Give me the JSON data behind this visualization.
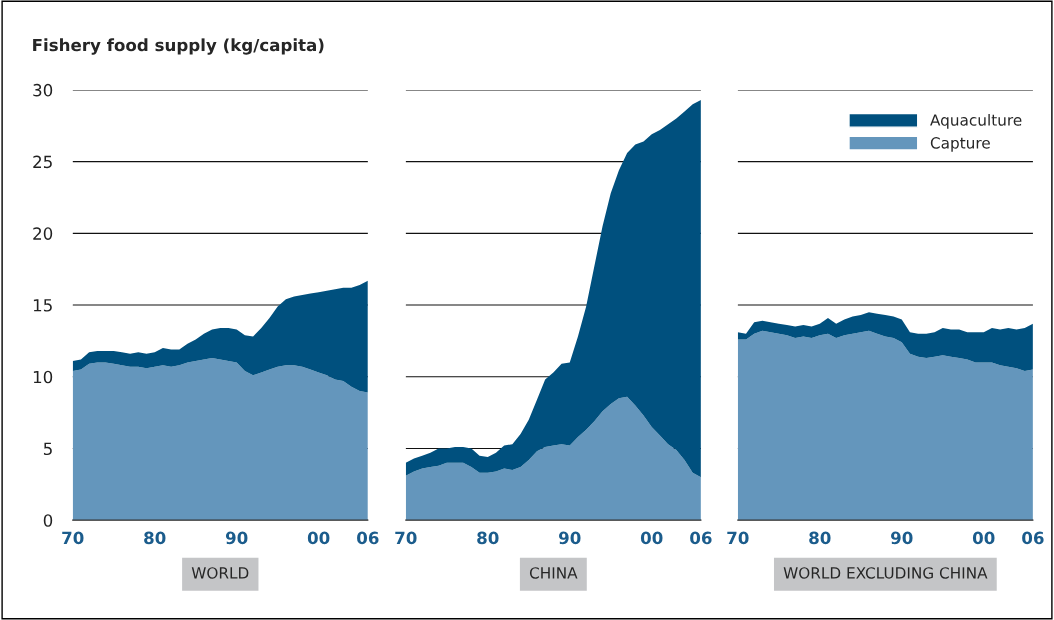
{
  "chart_data": [
    {
      "type": "area",
      "stacked": true,
      "ylabel": "Fishery food supply (kg/capita)",
      "xlabel": "WORLD",
      "x": [
        1970,
        1971,
        1972,
        1973,
        1974,
        1975,
        1976,
        1977,
        1978,
        1979,
        1980,
        1981,
        1982,
        1983,
        1984,
        1985,
        1986,
        1987,
        1988,
        1989,
        1990,
        1991,
        1992,
        1993,
        1994,
        1995,
        1996,
        1997,
        1998,
        1999,
        2000,
        2001,
        2002,
        2003,
        2004,
        2005,
        2006
      ],
      "series": [
        {
          "color": "#6496bc",
          "values": [
            10.4,
            10.5,
            10.9,
            11.0,
            11.0,
            10.9,
            10.8,
            10.7,
            10.7,
            10.6,
            10.7,
            10.8,
            10.7,
            10.8,
            11.0,
            11.1,
            11.2,
            11.3,
            11.2,
            11.1,
            11.0,
            10.4,
            10.1,
            10.3,
            10.5,
            10.7,
            10.8,
            10.8,
            10.7,
            10.5,
            10.3,
            10.1,
            9.8,
            9.7,
            9.3,
            9.0,
            8.9
          ]
        },
        {
          "color": "#00507e",
          "values": [
            0.7,
            0.7,
            0.8,
            0.8,
            0.8,
            0.9,
            0.9,
            0.9,
            1.0,
            1.0,
            1.0,
            1.2,
            1.2,
            1.1,
            1.3,
            1.5,
            1.8,
            2.0,
            2.2,
            2.3,
            2.3,
            2.5,
            2.7,
            3.1,
            3.6,
            4.2,
            4.6,
            4.8,
            5.0,
            5.3,
            5.6,
            5.9,
            6.3,
            6.5,
            6.9,
            7.4,
            7.8
          ]
        }
      ],
      "xlim": [
        1970,
        2006
      ],
      "xticks": [
        {
          "value": 1970,
          "label": "70"
        },
        {
          "value": 1980,
          "label": "80"
        },
        {
          "value": 1990,
          "label": "90"
        },
        {
          "value": 2000,
          "label": "00"
        },
        {
          "value": 2006,
          "label": "06"
        }
      ],
      "ylim": [
        0,
        30
      ],
      "yticks": [
        0,
        5,
        10,
        15,
        20,
        25,
        30
      ],
      "grid": "y",
      "legend": false
    },
    {
      "type": "area",
      "stacked": true,
      "xlabel": "CHINA",
      "x": [
        1970,
        1971,
        1972,
        1973,
        1974,
        1975,
        1976,
        1977,
        1978,
        1979,
        1980,
        1981,
        1982,
        1983,
        1984,
        1985,
        1986,
        1987,
        1988,
        1989,
        1990,
        1991,
        1992,
        1993,
        1994,
        1995,
        1996,
        1997,
        1998,
        1999,
        2000,
        2001,
        2002,
        2003,
        2004,
        2005,
        2006
      ],
      "series": [
        {
          "color": "#6496bc",
          "values": [
            3.1,
            3.4,
            3.6,
            3.7,
            3.8,
            4.0,
            4.0,
            4.0,
            3.7,
            3.3,
            3.3,
            3.4,
            3.6,
            3.5,
            3.7,
            4.2,
            4.8,
            5.1,
            5.2,
            5.3,
            5.2,
            5.8,
            6.3,
            6.9,
            7.6,
            8.1,
            8.5,
            8.6,
            8.0,
            7.3,
            6.5,
            5.9,
            5.3,
            4.9,
            4.2,
            3.3,
            3.0
          ]
        },
        {
          "color": "#00507e",
          "values": [
            0.9,
            0.9,
            0.9,
            1.0,
            1.2,
            1.0,
            1.1,
            1.1,
            1.3,
            1.2,
            1.1,
            1.3,
            1.6,
            1.8,
            2.3,
            2.8,
            3.6,
            4.7,
            5.1,
            5.6,
            5.8,
            7.0,
            8.6,
            10.8,
            12.9,
            14.7,
            15.9,
            17.0,
            18.2,
            19.1,
            20.4,
            21.3,
            22.3,
            23.1,
            24.3,
            25.7,
            26.3
          ]
        }
      ],
      "xlim": [
        1970,
        2006
      ],
      "xticks": [
        {
          "value": 1970,
          "label": "70"
        },
        {
          "value": 1980,
          "label": "80"
        },
        {
          "value": 1990,
          "label": "90"
        },
        {
          "value": 2000,
          "label": "00"
        },
        {
          "value": 2006,
          "label": "06"
        }
      ],
      "ylim": [
        0,
        30
      ],
      "yticks": [
        0,
        5,
        10,
        15,
        20,
        25,
        30
      ],
      "grid": "y",
      "legend": false,
      "tick_labels": "x"
    },
    {
      "type": "area",
      "stacked": true,
      "xlabel": "WORLD EXCLUDING CHINA",
      "x": [
        1970,
        1971,
        1972,
        1973,
        1974,
        1975,
        1976,
        1977,
        1978,
        1979,
        1980,
        1981,
        1982,
        1983,
        1984,
        1985,
        1986,
        1987,
        1988,
        1989,
        1990,
        1991,
        1992,
        1993,
        1994,
        1995,
        1996,
        1997,
        1998,
        1999,
        2000,
        2001,
        2002,
        2003,
        2004,
        2005,
        2006
      ],
      "series": [
        {
          "name": "Capture",
          "color": "#6496bc",
          "values": [
            12.6,
            12.6,
            13.0,
            13.2,
            13.1,
            13.0,
            12.9,
            12.7,
            12.8,
            12.7,
            12.9,
            13.0,
            12.7,
            12.9,
            13.0,
            13.1,
            13.2,
            13.0,
            12.8,
            12.7,
            12.4,
            11.6,
            11.4,
            11.3,
            11.4,
            11.5,
            11.4,
            11.3,
            11.2,
            11.0,
            11.0,
            11.0,
            10.8,
            10.7,
            10.6,
            10.4,
            10.5
          ]
        },
        {
          "name": "Aquaculture",
          "color": "#00507e",
          "values": [
            0.5,
            0.4,
            0.8,
            0.7,
            0.7,
            0.7,
            0.7,
            0.8,
            0.8,
            0.8,
            0.8,
            1.1,
            1.0,
            1.1,
            1.2,
            1.2,
            1.3,
            1.4,
            1.5,
            1.5,
            1.6,
            1.5,
            1.6,
            1.7,
            1.7,
            1.9,
            1.9,
            2.0,
            1.9,
            2.1,
            2.1,
            2.4,
            2.5,
            2.7,
            2.7,
            3.0,
            3.2
          ]
        }
      ],
      "xlim": [
        1970,
        2006
      ],
      "xticks": [
        {
          "value": 1970,
          "label": "70"
        },
        {
          "value": 1980,
          "label": "80"
        },
        {
          "value": 1990,
          "label": "90"
        },
        {
          "value": 2000,
          "label": "00"
        },
        {
          "value": 2006,
          "label": "06"
        }
      ],
      "ylim": [
        0,
        30
      ],
      "yticks": [
        0,
        5,
        10,
        15,
        20,
        25,
        30
      ],
      "grid": "y",
      "legend": "top right",
      "tick_labels": "x"
    }
  ]
}
